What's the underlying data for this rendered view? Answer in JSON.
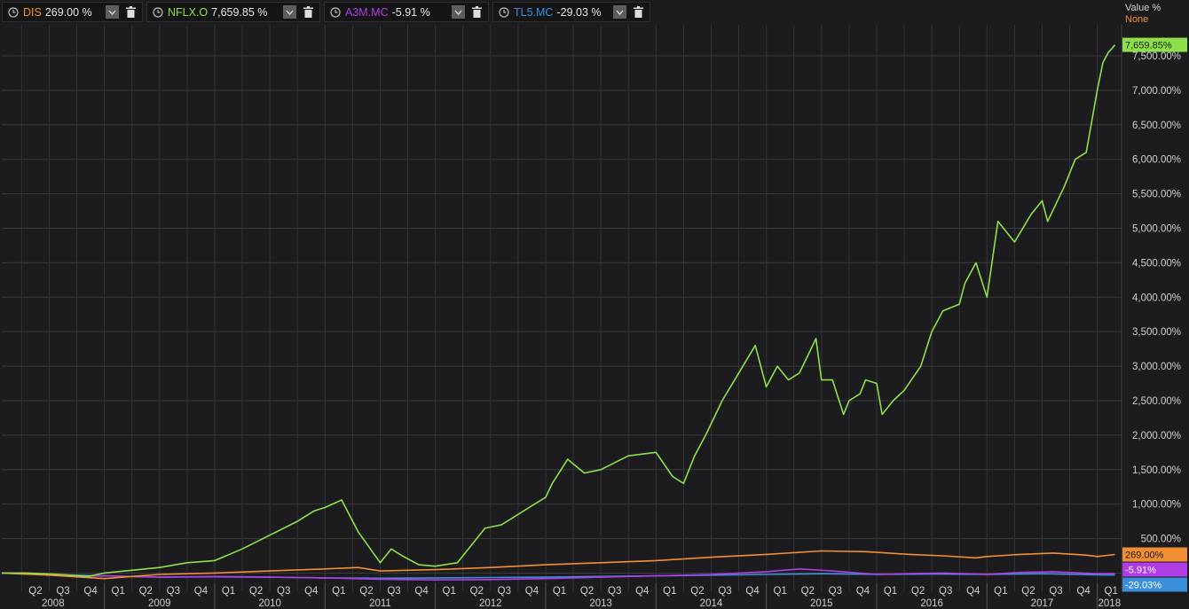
{
  "legend": [
    {
      "symbol": "DIS",
      "value": "269.00 %",
      "color": "#f28e33"
    },
    {
      "symbol": "NFLX.O",
      "value": "7,659.85 %",
      "color": "#8ee04a"
    },
    {
      "symbol": "A3M.MC",
      "value": "-5.91 %",
      "color": "#b03ce8"
    },
    {
      "symbol": "TL5.MC",
      "value": "-29.03 %",
      "color": "#3a8fd8"
    }
  ],
  "axis_header": {
    "title": "Value %",
    "mode": "None"
  },
  "chart_data": {
    "type": "line",
    "ylim": [
      -110,
      7950
    ],
    "xlim": [
      2008.07,
      2018.22
    ],
    "y_ticks": [
      0,
      500,
      1000,
      1500,
      2000,
      2500,
      3000,
      3500,
      4000,
      4500,
      5000,
      5500,
      6000,
      6500,
      7000,
      7500
    ],
    "y_tick_labels": [
      "",
      "500.00%",
      "1,000.00%",
      "1,500.00%",
      "2,000.00%",
      "2,500.00%",
      "3,000.00%",
      "3,500.00%",
      "4,000.00%",
      "4,500.00%",
      "5,000.00%",
      "5,500.00%",
      "6,000.00%",
      "6,500.00%",
      "7,000.00%",
      "7,500.00%"
    ],
    "quarter_labels": [
      "Q2",
      "Q3",
      "Q4",
      "Q1",
      "Q2",
      "Q3",
      "Q4",
      "Q1",
      "Q2",
      "Q3",
      "Q4",
      "Q1",
      "Q2",
      "Q3",
      "Q4",
      "Q1",
      "Q2",
      "Q3",
      "Q4",
      "Q1",
      "Q2",
      "Q3",
      "Q4",
      "Q1",
      "Q2",
      "Q3",
      "Q4",
      "Q1",
      "Q2",
      "Q3",
      "Q4",
      "Q1",
      "Q2",
      "Q3",
      "Q4",
      "Q1",
      "Q2",
      "Q3",
      "Q4",
      "Q1"
    ],
    "year_labels": [
      "2008",
      "2009",
      "2010",
      "2011",
      "2012",
      "2013",
      "2014",
      "2015",
      "2016",
      "2017",
      "2018"
    ],
    "grid": true,
    "series": [
      {
        "name": "NFLX.O",
        "color": "#8ee04a",
        "end_label": "7,659.85%",
        "x": [
          2008.07,
          2008.3,
          2008.6,
          2008.85,
          2009.0,
          2009.25,
          2009.5,
          2009.75,
          2010.0,
          2010.25,
          2010.5,
          2010.75,
          2010.9,
          2011.0,
          2011.15,
          2011.3,
          2011.5,
          2011.6,
          2011.7,
          2011.85,
          2012.0,
          2012.2,
          2012.45,
          2012.6,
          2012.7,
          2012.85,
          2013.0,
          2013.06,
          2013.2,
          2013.35,
          2013.5,
          2013.75,
          2014.0,
          2014.15,
          2014.25,
          2014.35,
          2014.45,
          2014.6,
          2014.75,
          2014.9,
          2015.0,
          2015.1,
          2015.2,
          2015.3,
          2015.45,
          2015.5,
          2015.6,
          2015.7,
          2015.75,
          2015.85,
          2015.9,
          2016.0,
          2016.05,
          2016.15,
          2016.25,
          2016.4,
          2016.5,
          2016.6,
          2016.75,
          2016.8,
          2016.9,
          2017.0,
          2017.1,
          2017.25,
          2017.4,
          2017.5,
          2017.55,
          2017.7,
          2017.8,
          2017.9,
          2018.0,
          2018.05,
          2018.1,
          2018.13,
          2018.16
        ],
        "y": [
          0,
          0,
          -20,
          -50,
          0,
          40,
          80,
          150,
          180,
          350,
          550,
          750,
          900,
          950,
          1060,
          600,
          150,
          350,
          250,
          120,
          100,
          150,
          650,
          700,
          800,
          950,
          1100,
          1300,
          1650,
          1450,
          1500,
          1700,
          1750,
          1400,
          1300,
          1700,
          2000,
          2500,
          2900,
          3300,
          2700,
          3000,
          2800,
          2900,
          3400,
          2800,
          2800,
          2300,
          2500,
          2600,
          2800,
          2750,
          2300,
          2500,
          2650,
          3000,
          3500,
          3800,
          3900,
          4200,
          4500,
          4000,
          5100,
          4800,
          5200,
          5400,
          5100,
          5600,
          6000,
          6100,
          7000,
          7400,
          7550,
          7600,
          7660
        ]
      },
      {
        "name": "DIS",
        "color": "#f28e33",
        "end_label": "269.00%",
        "x": [
          2008.07,
          2008.5,
          2009.0,
          2009.25,
          2009.5,
          2010.0,
          2010.5,
          2011.0,
          2011.3,
          2011.5,
          2012.0,
          2012.5,
          2013.0,
          2013.5,
          2014.0,
          2014.5,
          2015.0,
          2015.5,
          2015.9,
          2016.0,
          2016.3,
          2016.6,
          2016.9,
          2017.0,
          2017.3,
          2017.6,
          2017.9,
          2018.0,
          2018.16
        ],
        "y": [
          0,
          -30,
          -80,
          -50,
          -20,
          0,
          30,
          60,
          80,
          30,
          50,
          80,
          120,
          150,
          180,
          230,
          270,
          320,
          310,
          300,
          270,
          250,
          220,
          240,
          270,
          290,
          260,
          240,
          269
        ]
      },
      {
        "name": "A3M.MC",
        "color": "#b03ce8",
        "end_label": "-5.91%",
        "x": [
          2008.07,
          2008.5,
          2008.8,
          2009.0,
          2009.5,
          2010.0,
          2010.5,
          2011.0,
          2011.5,
          2012.0,
          2012.5,
          2013.0,
          2013.5,
          2014.0,
          2014.5,
          2015.0,
          2015.3,
          2015.6,
          2016.0,
          2016.3,
          2016.6,
          2017.0,
          2017.3,
          2017.6,
          2018.0,
          2018.16
        ],
        "y": [
          0,
          -20,
          -50,
          -40,
          -60,
          -50,
          -60,
          -70,
          -90,
          -100,
          -95,
          -80,
          -60,
          -40,
          -20,
          20,
          60,
          30,
          -20,
          -10,
          0,
          -20,
          10,
          20,
          -10,
          -6
        ]
      },
      {
        "name": "TL5.MC",
        "color": "#3a8fd8",
        "end_label": "-29.03%",
        "x": [
          2008.07,
          2008.5,
          2009.0,
          2009.5,
          2010.0,
          2010.5,
          2011.0,
          2011.5,
          2012.0,
          2012.5,
          2013.0,
          2013.5,
          2014.0,
          2014.5,
          2015.0,
          2015.5,
          2016.0,
          2016.5,
          2017.0,
          2017.5,
          2018.0,
          2018.16
        ],
        "y": [
          0,
          -20,
          -40,
          -60,
          -55,
          -60,
          -70,
          -75,
          -70,
          -65,
          -60,
          -50,
          -40,
          -30,
          -20,
          -10,
          -20,
          -15,
          -20,
          -10,
          -25,
          -29
        ]
      }
    ]
  }
}
